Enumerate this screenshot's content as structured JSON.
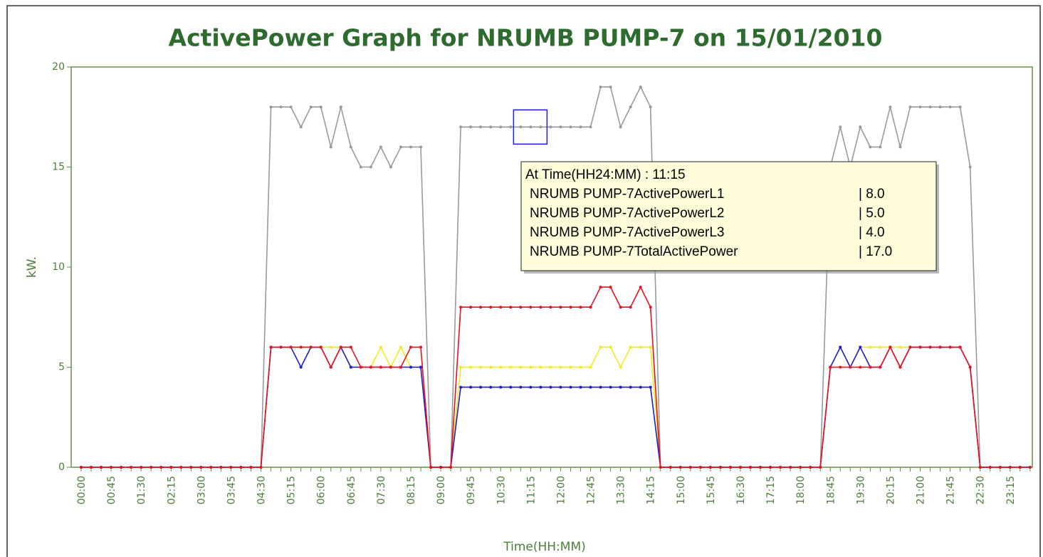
{
  "chart_data": {
    "type": "line",
    "title": "ActivePower Graph for NRUMB PUMP-7 on 15/01/2010",
    "x_label": "Time(HH:MM)",
    "y_label": "kW.",
    "categories": [
      "00:00",
      null,
      null,
      "00:45",
      null,
      null,
      "01:30",
      null,
      null,
      "02:15",
      null,
      null,
      "03:00",
      null,
      null,
      "03:45",
      null,
      null,
      "04:30",
      null,
      null,
      "05:15",
      null,
      null,
      "06:00",
      null,
      null,
      "06:45",
      null,
      null,
      "07:30",
      null,
      null,
      "08:15",
      null,
      null,
      "09:00",
      null,
      null,
      "09:45",
      null,
      null,
      "10:30",
      null,
      null,
      "11:15",
      null,
      null,
      "12:00",
      null,
      null,
      "12:45",
      null,
      null,
      "13:30",
      null,
      null,
      "14:15",
      null,
      null,
      "15:00",
      null,
      null,
      "15:45",
      null,
      null,
      "16:30",
      null,
      null,
      "17:15",
      null,
      null,
      "18:00",
      null,
      null,
      "18:45",
      null,
      null,
      "19:30",
      null,
      null,
      "20:15",
      null,
      null,
      "21:00",
      null,
      null,
      "21:45",
      null,
      null,
      "22:30",
      null,
      null,
      "23:15",
      null,
      null
    ],
    "ylim": [
      0,
      20
    ],
    "yticks": [
      0,
      5,
      10,
      15,
      20
    ],
    "grid": false,
    "series": [
      {
        "name": "NRUMB PUMP-7TotalActivePower",
        "color": "#9a9a9a",
        "values": [
          0,
          0,
          0,
          0,
          0,
          0,
          0,
          0,
          0,
          0,
          0,
          0,
          0,
          0,
          0,
          0,
          0,
          0,
          0,
          18,
          18,
          18,
          17,
          18,
          18,
          16,
          18,
          16,
          15,
          15,
          16,
          15,
          16,
          16,
          16,
          0,
          0,
          0,
          17,
          17,
          17,
          17,
          17,
          17,
          17,
          17,
          17,
          17,
          17,
          17,
          17,
          17,
          19,
          19,
          17,
          18,
          19,
          18,
          0,
          0,
          0,
          0,
          0,
          0,
          0,
          0,
          0,
          0,
          0,
          0,
          0,
          0,
          0,
          0,
          0,
          15,
          17,
          15,
          17,
          16,
          16,
          18,
          16,
          18,
          18,
          18,
          18,
          18,
          18,
          15,
          0,
          0,
          0,
          0,
          0,
          0
        ]
      },
      {
        "name": "NRUMB PUMP-7ActivePowerL2",
        "color": "#f0ea1e",
        "values": [
          0,
          0,
          0,
          0,
          0,
          0,
          0,
          0,
          0,
          0,
          0,
          0,
          0,
          0,
          0,
          0,
          0,
          0,
          0,
          6,
          6,
          6,
          6,
          6,
          6,
          6,
          6,
          5,
          5,
          5,
          6,
          5,
          6,
          5,
          5,
          0,
          0,
          0,
          5,
          5,
          5,
          5,
          5,
          5,
          5,
          5,
          5,
          5,
          5,
          5,
          5,
          5,
          6,
          6,
          5,
          6,
          6,
          6,
          0,
          0,
          0,
          0,
          0,
          0,
          0,
          0,
          0,
          0,
          0,
          0,
          0,
          0,
          0,
          0,
          0,
          5,
          6,
          5,
          6,
          6,
          6,
          6,
          6,
          6,
          6,
          6,
          6,
          6,
          6,
          5,
          0,
          0,
          0,
          0,
          0,
          0
        ]
      },
      {
        "name": "NRUMB PUMP-7ActivePowerL3",
        "color": "#1a1ad8",
        "values": [
          0,
          0,
          0,
          0,
          0,
          0,
          0,
          0,
          0,
          0,
          0,
          0,
          0,
          0,
          0,
          0,
          0,
          0,
          0,
          6,
          6,
          6,
          5,
          6,
          6,
          5,
          6,
          5,
          5,
          5,
          5,
          5,
          5,
          5,
          5,
          0,
          0,
          0,
          4,
          4,
          4,
          4,
          4,
          4,
          4,
          4,
          4,
          4,
          4,
          4,
          4,
          4,
          4,
          4,
          4,
          4,
          4,
          4,
          0,
          0,
          0,
          0,
          0,
          0,
          0,
          0,
          0,
          0,
          0,
          0,
          0,
          0,
          0,
          0,
          0,
          5,
          6,
          5,
          6,
          5,
          5,
          6,
          5,
          6,
          6,
          6,
          6,
          6,
          6,
          5,
          0,
          0,
          0,
          0,
          0,
          0
        ]
      },
      {
        "name": "NRUMB PUMP-7ActivePowerL1",
        "color": "#e8101a",
        "values": [
          0,
          0,
          0,
          0,
          0,
          0,
          0,
          0,
          0,
          0,
          0,
          0,
          0,
          0,
          0,
          0,
          0,
          0,
          0,
          6,
          6,
          6,
          6,
          6,
          6,
          5,
          6,
          6,
          5,
          5,
          5,
          5,
          5,
          6,
          6,
          0,
          0,
          0,
          8,
          8,
          8,
          8,
          8,
          8,
          8,
          8,
          8,
          8,
          8,
          8,
          8,
          8,
          9,
          9,
          8,
          8,
          9,
          8,
          0,
          0,
          0,
          0,
          0,
          0,
          0,
          0,
          0,
          0,
          0,
          0,
          0,
          0,
          0,
          0,
          0,
          5,
          5,
          5,
          5,
          5,
          5,
          6,
          5,
          6,
          6,
          6,
          6,
          6,
          6,
          5,
          0,
          0,
          0,
          0,
          0,
          0
        ]
      }
    ],
    "tooltip": {
      "header": "At Time(HH24:MM) : 11:15",
      "rows": [
        {
          "name": "NRUMB PUMP-7ActivePowerL1",
          "value": "| 8.0"
        },
        {
          "name": "NRUMB PUMP-7ActivePowerL2",
          "value": "| 5.0"
        },
        {
          "name": "NRUMB PUMP-7ActivePowerL3",
          "value": "| 4.0"
        },
        {
          "name": "NRUMB PUMP-7TotalActivePower",
          "value": "| 17.0"
        }
      ]
    }
  }
}
